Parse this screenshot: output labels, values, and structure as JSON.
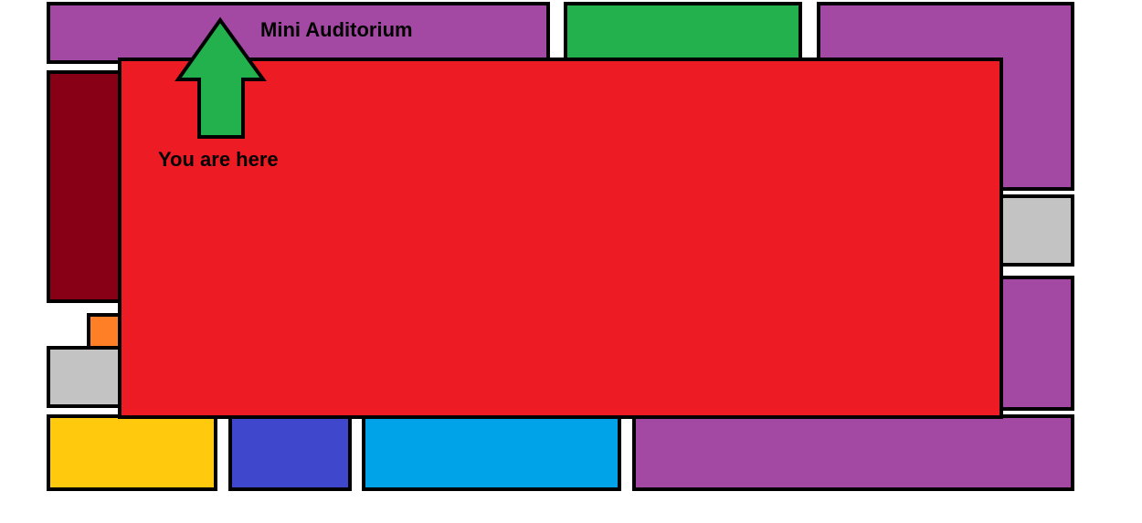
{
  "map": {
    "labels": {
      "mini_auditorium": "Mini Auditorium",
      "you_are_here": "You are here"
    },
    "colors": {
      "purple": "#a349a4",
      "green": "#22b14c",
      "red": "#ed1c24",
      "dark_red": "#880015",
      "orange": "#ff7f27",
      "gray": "#c3c3c3",
      "yellow": "#ffc90e",
      "indigo": "#3f48cc",
      "turquoise": "#00a2e8",
      "outline": "#000000"
    },
    "marker": {
      "icon": "up-arrow-icon",
      "color": "#22b14c"
    }
  }
}
